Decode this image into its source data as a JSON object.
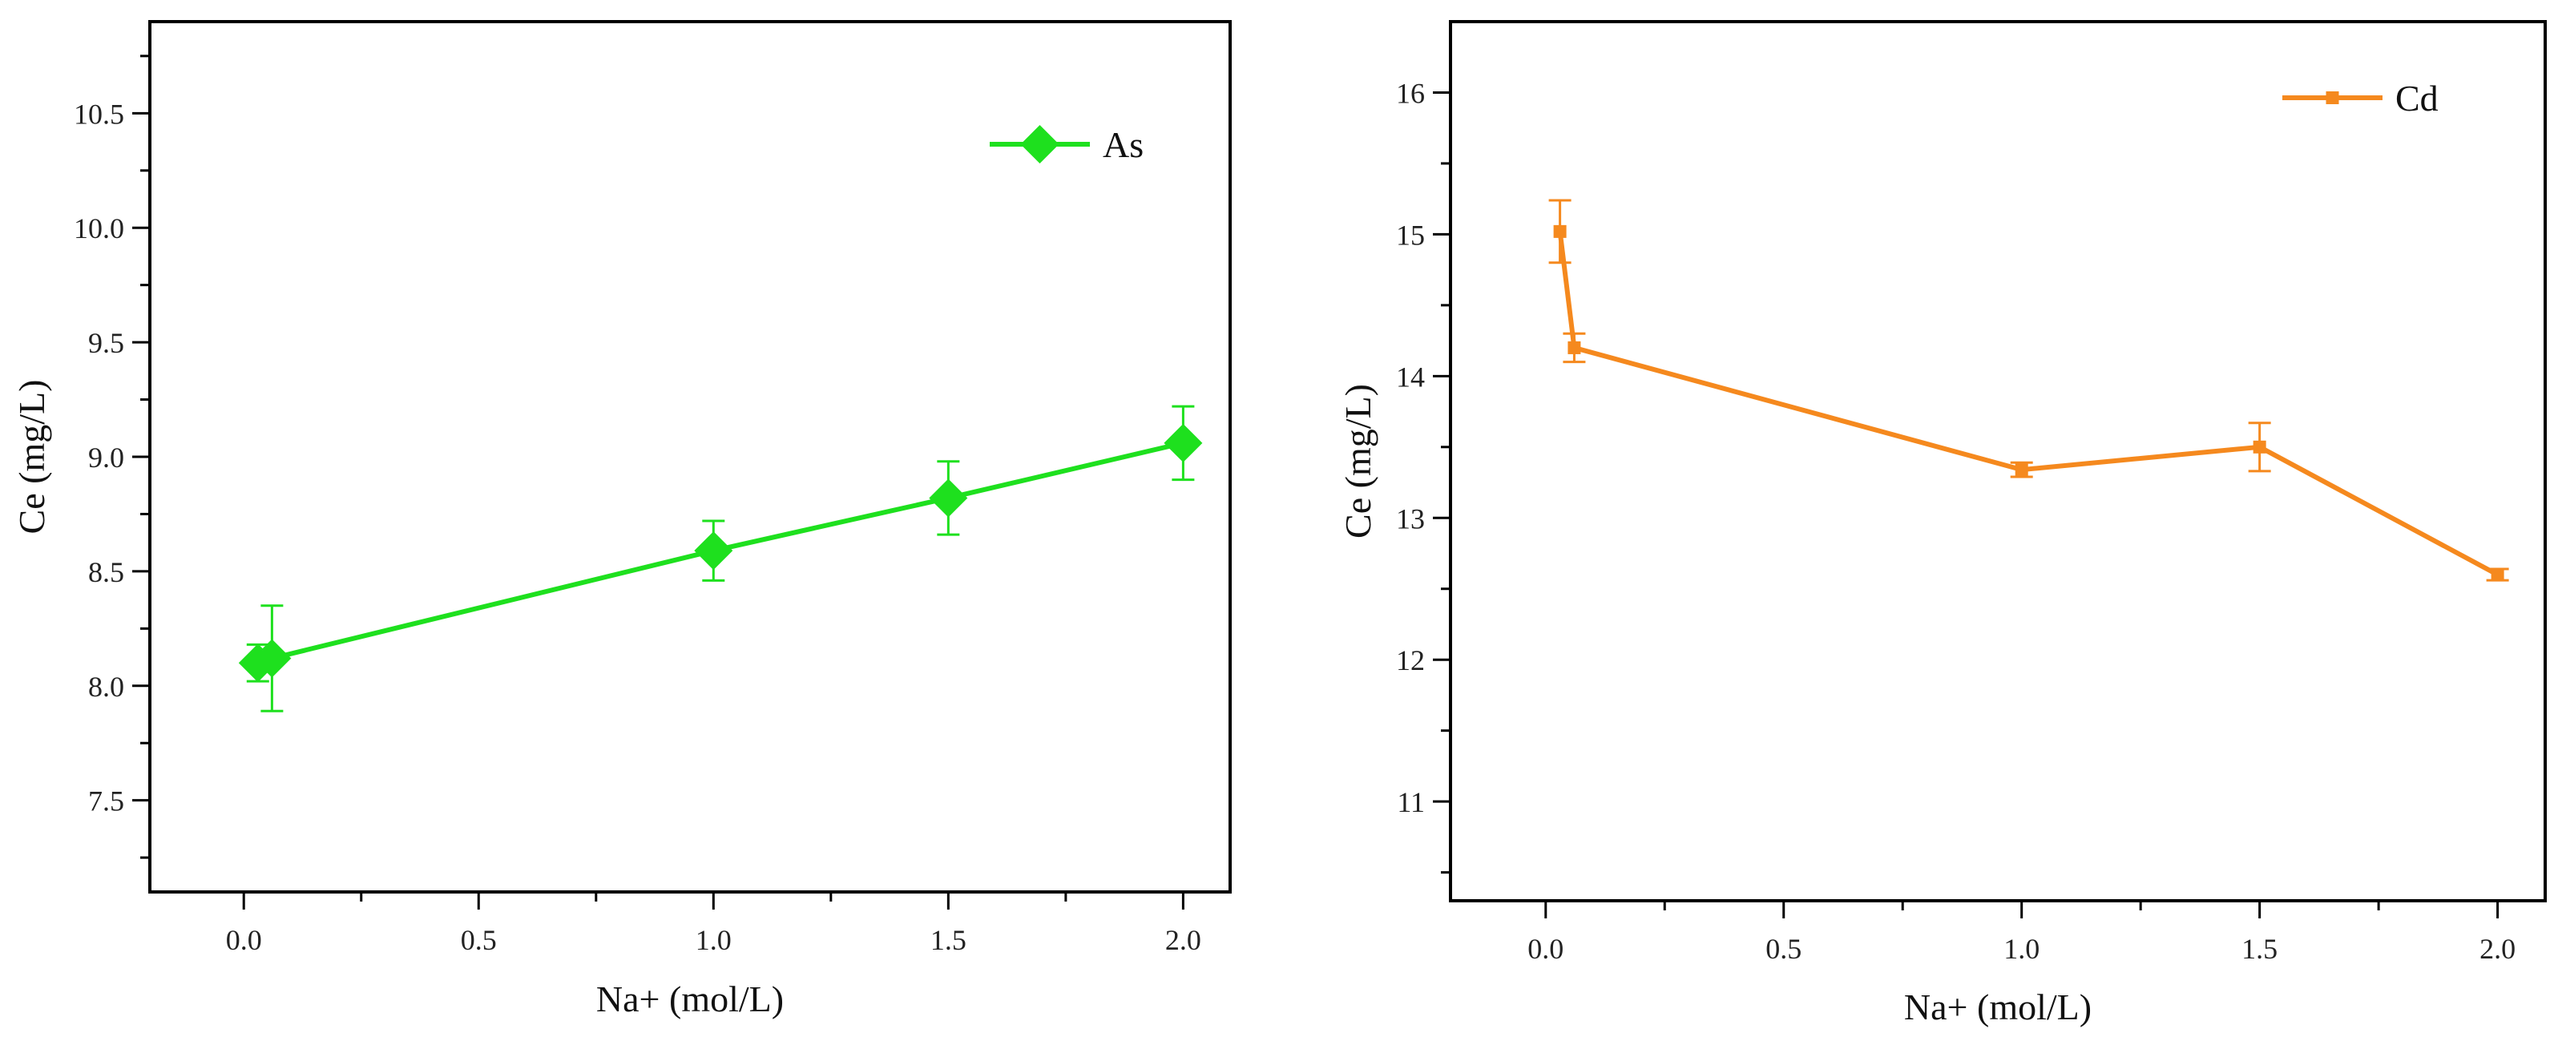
{
  "chart_data": [
    {
      "type": "line",
      "title": "",
      "xlabel": "Na+ (mol/L)",
      "ylabel": "Ce (mg/L)",
      "xlim": [
        -0.2,
        2.1
      ],
      "ylim": [
        7.1,
        10.9
      ],
      "xticks": [
        0.0,
        0.5,
        1.0,
        1.5,
        2.0
      ],
      "xtick_labels": [
        "0.0",
        "0.5",
        "1.0",
        "1.5",
        "2.0"
      ],
      "yticks": [
        7.5,
        8.0,
        8.5,
        9.0,
        9.5,
        10.0,
        10.5
      ],
      "ytick_labels": [
        "7.5",
        "8.0",
        "8.5",
        "9.0",
        "9.5",
        "10.0",
        "10.5"
      ],
      "legend_position": "top-right",
      "grid": false,
      "series": [
        {
          "name": "As",
          "color": "#1ee01e",
          "marker": "diamond",
          "x": [
            0.03,
            0.06,
            1.0,
            1.5,
            2.0
          ],
          "y": [
            8.1,
            8.12,
            8.59,
            8.82,
            9.06
          ],
          "err": [
            0.08,
            0.23,
            0.13,
            0.16,
            0.16
          ]
        }
      ]
    },
    {
      "type": "line",
      "title": "",
      "xlabel": "Na+ (mol/L)",
      "ylabel": "Ce (mg/L)",
      "xlim": [
        -0.2,
        2.1
      ],
      "ylim": [
        10.3,
        16.5
      ],
      "xticks": [
        0.0,
        0.5,
        1.0,
        1.5,
        2.0
      ],
      "xtick_labels": [
        "0.0",
        "0.5",
        "1.0",
        "1.5",
        "2.0"
      ],
      "yticks": [
        11,
        12,
        13,
        14,
        15,
        16
      ],
      "ytick_labels": [
        "11",
        "12",
        "13",
        "14",
        "15",
        "16"
      ],
      "legend_position": "top-right",
      "grid": false,
      "series": [
        {
          "name": "Cd",
          "color": "#f5891e",
          "marker": "square",
          "x": [
            0.03,
            0.06,
            1.0,
            1.5,
            2.0
          ],
          "y": [
            15.02,
            14.2,
            13.34,
            13.5,
            12.6
          ],
          "err": [
            0.22,
            0.1,
            0.05,
            0.17,
            0.04
          ]
        }
      ]
    }
  ]
}
